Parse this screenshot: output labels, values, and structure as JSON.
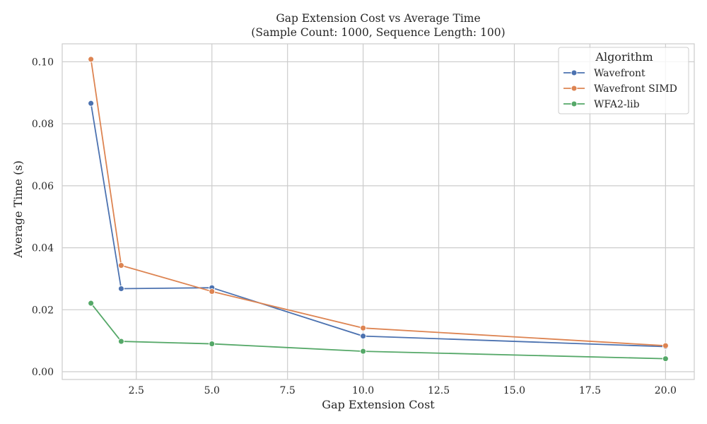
{
  "chart_data": {
    "type": "line",
    "title": "Gap Extension Cost vs Average Time",
    "subtitle": "(Sample Count: 1000, Sequence Length: 100)",
    "xlabel": "Gap Extension Cost",
    "ylabel": "Average Time (s)",
    "xlim": [
      0.05,
      20.95
    ],
    "ylim": [
      -0.0025,
      0.1058
    ],
    "x_ticks": [
      2.5,
      5.0,
      7.5,
      10.0,
      12.5,
      15.0,
      17.5,
      20.0
    ],
    "x_tick_labels": [
      "2.5",
      "5.0",
      "7.5",
      "10.0",
      "12.5",
      "15.0",
      "17.5",
      "20.0"
    ],
    "y_ticks": [
      0.0,
      0.02,
      0.04,
      0.06,
      0.08,
      0.1
    ],
    "y_tick_labels": [
      "0.00",
      "0.02",
      "0.04",
      "0.06",
      "0.08",
      "0.10"
    ],
    "grid": true,
    "legend": {
      "title": "Algorithm",
      "position": "top-right"
    },
    "x": [
      1,
      2,
      5,
      10,
      20
    ],
    "series": [
      {
        "name": "Wavefront",
        "color": "#4c72b0",
        "values": [
          0.0866,
          0.0268,
          0.0271,
          0.0115,
          0.0081
        ]
      },
      {
        "name": "Wavefront SIMD",
        "color": "#dd8452",
        "values": [
          0.1008,
          0.0343,
          0.0259,
          0.0141,
          0.0084
        ]
      },
      {
        "name": "WFA2-lib",
        "color": "#55a868",
        "values": [
          0.0221,
          0.0098,
          0.009,
          0.0066,
          0.0042
        ]
      }
    ]
  }
}
